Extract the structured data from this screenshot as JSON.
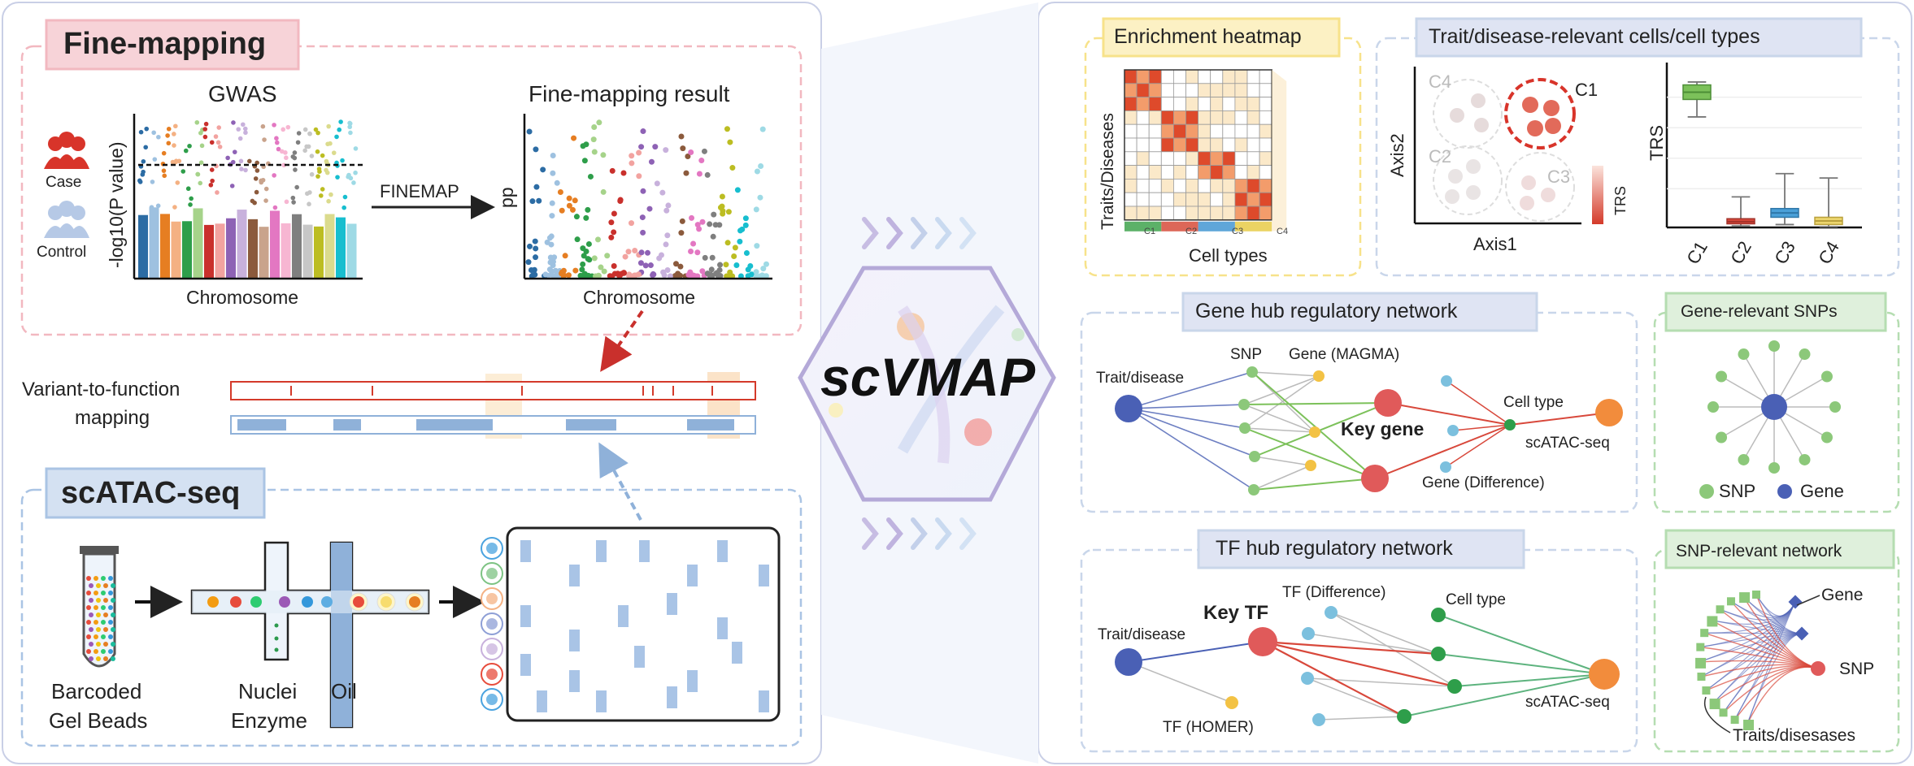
{
  "center": {
    "title": "scVMAP"
  },
  "left": {
    "finemapping": {
      "title": "Fine-mapping",
      "gwas_title": "GWAS",
      "ylabel": "-log10(P value)",
      "xlabel": "Chromosome",
      "case_label": "Case",
      "control_label": "Control",
      "arrow_label": "FINEMAP",
      "result_title": "Fine-mapping result",
      "result_ylabel": "pp",
      "result_xlabel": "Chromosome"
    },
    "v2f": {
      "label_line1": "Variant-to-function",
      "label_line2": "mapping"
    },
    "scatac": {
      "title": "scATAC-seq",
      "beads_line1": "Barcoded",
      "beads_line2": "Gel Beads",
      "nuclei": "Nuclei",
      "enzyme": "Enzyme",
      "oil": "Oil"
    }
  },
  "right": {
    "enrichment": {
      "title": "Enrichment heatmap",
      "ylabel": "Traits/Diseases",
      "xlabel": "Cell types",
      "columns": [
        "C1",
        "C2",
        "C3",
        "C4"
      ]
    },
    "trait_cells": {
      "title": "Trait/disease-relevant cells/cell types",
      "axis1": "Axis1",
      "axis2": "Axis2",
      "trs": "TRS",
      "clusters": [
        "C1",
        "C2",
        "C3",
        "C4"
      ],
      "box_ylabel": "TRS",
      "box_categories": [
        "C1",
        "C2",
        "C3",
        "C4"
      ]
    },
    "gene_hub": {
      "title": "Gene hub regulatory network",
      "trait": "Trait/disease",
      "snp": "SNP",
      "gene_magma": "Gene (MAGMA)",
      "key_gene": "Key gene",
      "cell_type": "Cell type",
      "scatac": "scATAC-seq",
      "gene_diff": "Gene (Difference)"
    },
    "gene_snps": {
      "title": "Gene-relevant SNPs",
      "legend_snp": "SNP",
      "legend_gene": "Gene"
    },
    "tf_hub": {
      "title": "TF hub regulatory network",
      "trait": "Trait/disease",
      "key_tf": "Key TF",
      "tf_diff": "TF (Difference)",
      "cell_type": "Cell type",
      "scatac": "scATAC-seq",
      "tf_homer": "TF (HOMER)"
    },
    "snp_network": {
      "title": "SNP-relevant network",
      "gene": "Gene",
      "snp": "SNP",
      "traits": "Traits/disesases"
    }
  },
  "chart_data": [
    {
      "type": "box",
      "title": "Trait/disease-relevant cells/cell types",
      "xlabel": "",
      "ylabel": "TRS",
      "categories": [
        "C1",
        "C2",
        "C3",
        "C4"
      ],
      "boxes": [
        {
          "name": "C1",
          "min": 7.6,
          "q1": 8.8,
          "median": 9.3,
          "q3": 9.8,
          "max": 10.0
        },
        {
          "name": "C2",
          "min": 0.1,
          "q1": 0.25,
          "median": 0.4,
          "q3": 0.6,
          "max": 2.1
        },
        {
          "name": "C3",
          "min": 0.2,
          "q1": 0.7,
          "median": 1.0,
          "q3": 1.3,
          "max": 3.7
        },
        {
          "name": "C4",
          "min": 0.05,
          "q1": 0.2,
          "median": 0.45,
          "q3": 0.7,
          "max": 3.4
        }
      ],
      "ylim": [
        0,
        10.5
      ]
    }
  ],
  "colors": {
    "pink": "#f2b8c0",
    "pinkfill": "#f7d3d8",
    "blue": "#aac4e4",
    "bluefill": "#d4e1f2",
    "yellow": "#f7e28a",
    "green": "#b5ddb1",
    "red": "#d43a2a",
    "heat1": "#fbe9c9",
    "heat2": "#f39c6b",
    "heat3": "#de4a2b"
  }
}
